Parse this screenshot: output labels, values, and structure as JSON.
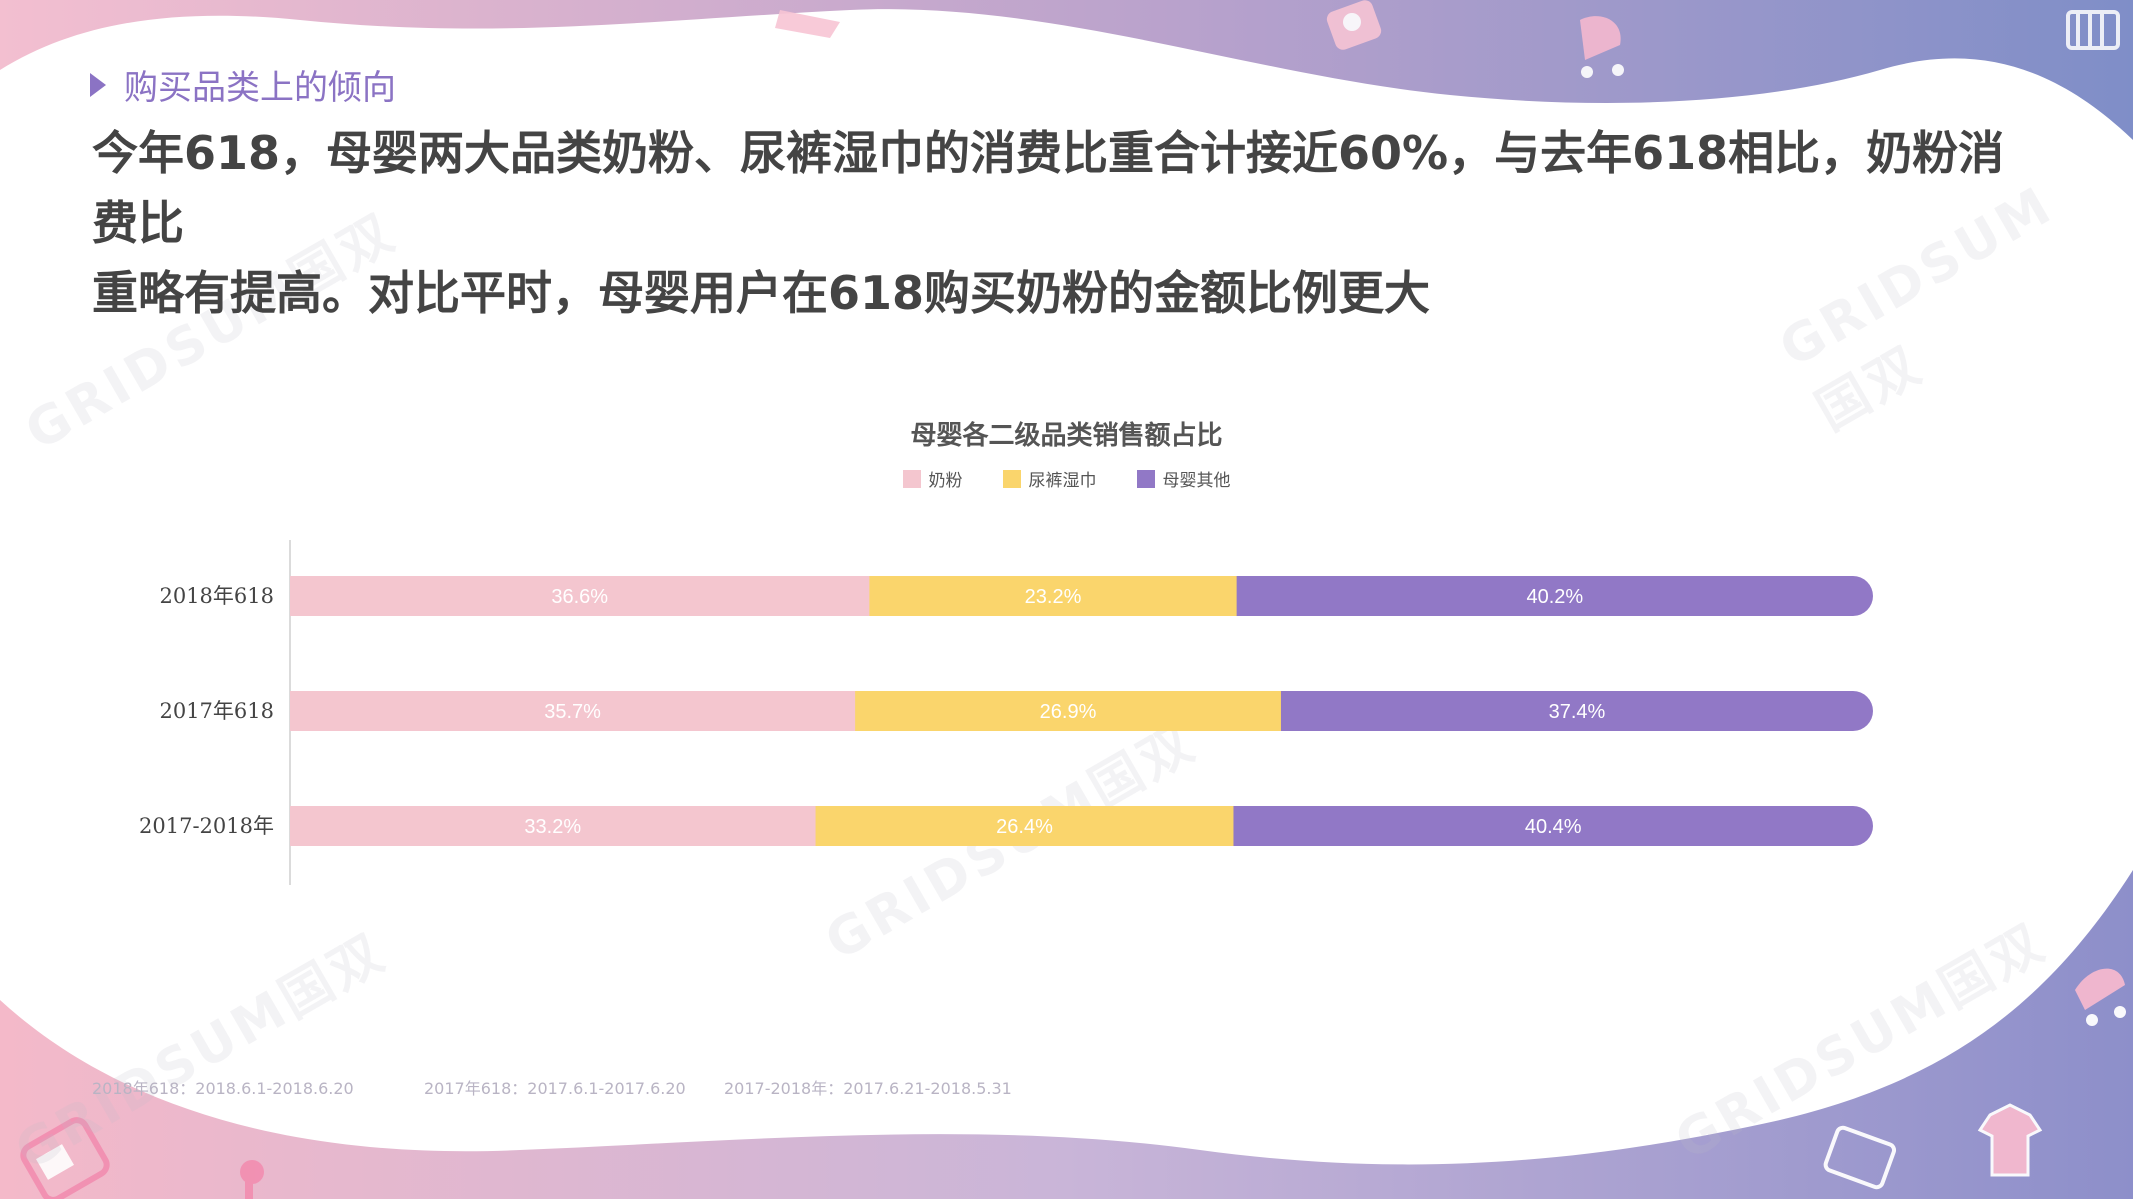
{
  "header": {
    "section_label": "购买品类上的倾向",
    "headline_line1": "今年618，母婴两大品类奶粉、尿裤湿巾的消费比重合计接近60%，与去年618相比，奶粉消费比",
    "headline_line2": "重略有提高。对比平时，母婴用户在618购买奶粉的金额比例更大"
  },
  "watermark": "GRIDSUM国双",
  "chart_data": {
    "type": "bar",
    "orientation": "horizontal",
    "stacked": true,
    "percent_stacked": true,
    "title": "母婴各二级品类销售额占比",
    "legend_position": "top",
    "categories": [
      "2018年618",
      "2017年618",
      "2017-2018年"
    ],
    "series": [
      {
        "name": "奶粉",
        "color": "#f4c6cf",
        "values": [
          36.6,
          35.7,
          33.2
        ],
        "labels": [
          "36.6%",
          "35.7%",
          "33.2%"
        ]
      },
      {
        "name": "尿裤湿巾",
        "color": "#fad56c",
        "values": [
          23.2,
          26.9,
          26.4
        ],
        "labels": [
          "23.2%",
          "26.9%",
          "26.4%"
        ]
      },
      {
        "name": "母婴其他",
        "color": "#9178c6",
        "values": [
          40.2,
          37.4,
          40.4
        ],
        "labels": [
          "40.2%",
          "37.4%",
          "40.4%"
        ]
      }
    ],
    "xlim": [
      0,
      100
    ],
    "grid": false
  },
  "footnotes": [
    "2018年618：2018.6.1-2018.6.20",
    "2017年618：2017.6.1-2017.6.20",
    "2017-2018年：2017.6.21-2018.5.31"
  ]
}
